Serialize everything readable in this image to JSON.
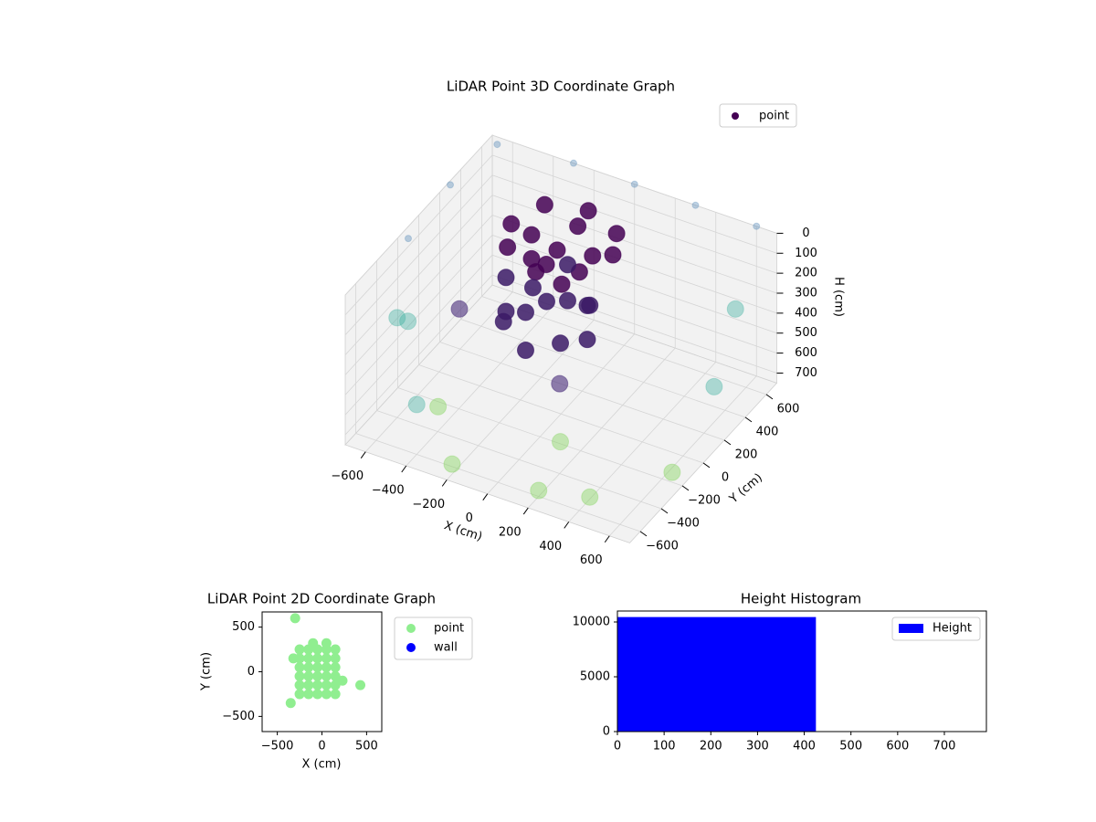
{
  "chart_data": [
    {
      "type": "scatter3d",
      "title": "LiDAR Point 3D Coordinate Graph",
      "xlabel": "X (cm)",
      "ylabel": "Y (cm)",
      "zlabel": "H (cm)",
      "xlim": [
        -700,
        700
      ],
      "ylim": [
        -700,
        700
      ],
      "zlim": [
        0,
        750
      ],
      "zinverted": true,
      "grid": true,
      "legend": "upper right",
      "xticks": [
        {
          "value": -600,
          "label": "−600"
        },
        {
          "value": -400,
          "label": "−400"
        },
        {
          "value": -200,
          "label": "−200"
        },
        0,
        200,
        400,
        600
      ],
      "yticks": [
        {
          "value": -600,
          "label": "−600"
        },
        {
          "value": -400,
          "label": "−400"
        },
        {
          "value": -200,
          "label": "−200"
        },
        0,
        200,
        400,
        600
      ],
      "zticks": [
        0,
        100,
        200,
        300,
        400,
        500,
        600,
        700
      ],
      "series": [
        {
          "name": "point",
          "color": "#440154",
          "x": [
            -650,
            -700,
            -700,
            -300,
            0,
            300,
            600,
            -600,
            -650,
            -400,
            -200,
            200,
            400,
            650,
            650,
            600,
            -500,
            200,
            -450,
            100,
            100,
            27,
            -150,
            -327,
            -400,
            -327,
            -150,
            27,
            0,
            -150,
            -300,
            -150,
            0,
            -200,
            -400,
            -200,
            -60,
            -340,
            -340,
            -60,
            0,
            -200,
            -400,
            -200,
            -200,
            -100,
            -300,
            -200
          ],
          "y": [
            650,
            300,
            -100,
            700,
            700,
            700,
            700,
            -400,
            -200,
            -600,
            -650,
            -600,
            -500,
            -200,
            200,
            500,
            0,
            -400,
            -300,
            -200,
            300,
            477,
            550,
            477,
            300,
            123,
            50,
            123,
            300,
            450,
            300,
            150,
            250,
            450,
            250,
            50,
            390,
            390,
            110,
            110,
            250,
            450,
            250,
            50,
            250,
            200,
            300,
            350
          ],
          "z": [
            0,
            20,
            60,
            0,
            0,
            0,
            0,
            250,
            400,
            500,
            700,
            720,
            740,
            700,
            500,
            300,
            400,
            300,
            700,
            740,
            90,
            110,
            100,
            90,
            110,
            100,
            120,
            100,
            130,
            120,
            130,
            140,
            350,
            330,
            350,
            340,
            450,
            460,
            470,
            480,
            520,
            510,
            520,
            530,
            400,
            250,
            250,
            200
          ],
          "colors": [
            "#5b8db866",
            "#5b8db866",
            "#5b8db866",
            "#5b8db866",
            "#5b8db866",
            "#5b8db866",
            "#5b8db866",
            "#3fb0a066",
            "#3fb0a066",
            "#3fb0a066",
            "#7ad15166",
            "#7ad15166",
            "#7ad15166",
            "#7ad15166",
            "#3fb0a066",
            "#3fb0a066",
            "#472c7a99",
            "#472c7a99",
            "#7ad15166",
            "#7ad15166",
            "#440154d9",
            "#440154d9",
            "#440154d9",
            "#440154d9",
            "#440154d9",
            "#440154d9",
            "#440154d9",
            "#440154d9",
            "#440154d9",
            "#440154d9",
            "#440154d9",
            "#440154d9",
            "#3b1a66d9",
            "#3b1a66d9",
            "#3b1a66d9",
            "#3b1a66d9",
            "#3b1a66d9",
            "#3b1a66d9",
            "#3b1a66d9",
            "#3b1a66d9",
            "#3b1a66d9",
            "#3b1a66d9",
            "#3b1a66d9",
            "#3b1a66d9",
            "#3b1a66d9",
            "#440154d9",
            "#440154d9",
            "#440154d9"
          ]
        }
      ]
    },
    {
      "type": "scatter",
      "title": "LiDAR Point 2D Coordinate Graph",
      "xlabel": "X (cm)",
      "ylabel": "Y (cm)",
      "xlim": [
        -670,
        670
      ],
      "ylim": [
        -670,
        670
      ],
      "legend": "outside right",
      "xticks": [
        {
          "value": -500,
          "label": "−500"
        },
        0,
        500
      ],
      "yticks": [
        {
          "value": -500,
          "label": "−500"
        },
        0,
        500
      ],
      "series": [
        {
          "name": "point",
          "color": "#90ee90",
          "x": [
            -250,
            -150,
            -50,
            50,
            150,
            -250,
            -150,
            -50,
            50,
            150,
            -250,
            -150,
            -50,
            50,
            150,
            -250,
            -150,
            -50,
            50,
            150,
            -250,
            -150,
            -50,
            50,
            150,
            -250,
            -150,
            -50,
            50,
            150,
            -100,
            50,
            -300,
            -320,
            -350,
            430,
            230
          ],
          "y": [
            -250,
            -250,
            -250,
            -250,
            -250,
            -150,
            -150,
            -150,
            -150,
            -150,
            -50,
            -50,
            -50,
            -50,
            -50,
            50,
            50,
            50,
            50,
            50,
            150,
            150,
            150,
            150,
            150,
            250,
            250,
            250,
            250,
            250,
            320,
            320,
            600,
            150,
            -350,
            -150,
            -100
          ]
        },
        {
          "name": "wall",
          "color": "#0000ff",
          "x": [],
          "y": []
        }
      ]
    },
    {
      "type": "histogram",
      "title": "Height Histogram",
      "xlim": [
        0,
        790
      ],
      "ylim": [
        0,
        11000
      ],
      "legend": "upper right",
      "xticks": [
        0,
        100,
        200,
        300,
        400,
        500,
        600,
        700
      ],
      "yticks": [
        0,
        5000,
        10000
      ],
      "bins": [
        0,
        425,
        790
      ],
      "series": [
        {
          "name": "Height",
          "color": "#0000ff",
          "values": [
            10450,
            0
          ]
        }
      ]
    }
  ]
}
